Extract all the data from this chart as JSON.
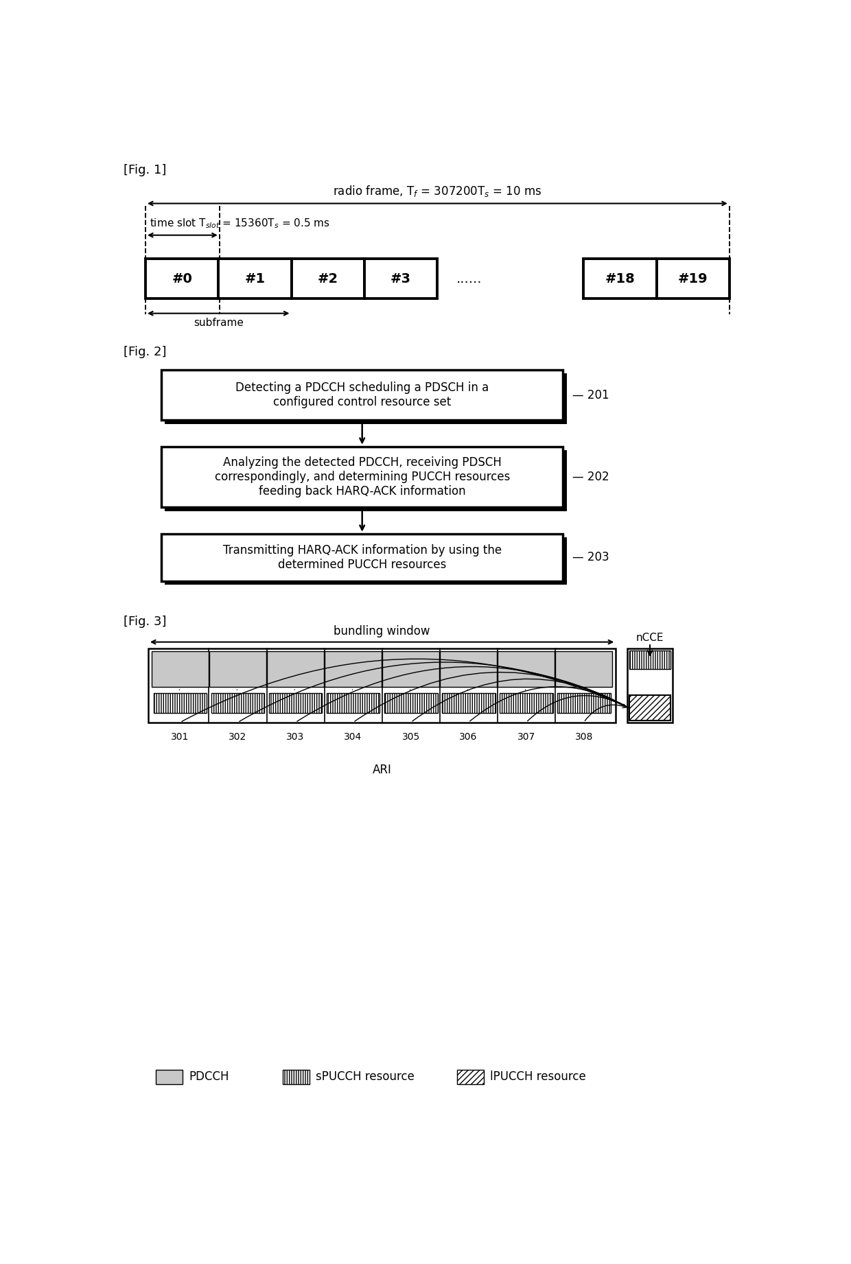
{
  "fig1_label": "[Fig. 1]",
  "fig2_label": "[Fig. 2]",
  "fig3_label": "[Fig. 3]",
  "radio_frame_text": "radio frame, T$_f$ = 307200T$_s$ = 10 ms",
  "timeslot_text": "time slot T$_{slot}$ = 15360T$_s$ = 0.5 ms",
  "subframe_text": "subframe",
  "slot_labels_1": [
    "#0",
    "#1",
    "#2",
    "#3"
  ],
  "slot_labels_2": [
    "#18",
    "#19"
  ],
  "slots_dots": "......",
  "box201_text": "Detecting a PDCCH scheduling a PDSCH in a\nconfigured control resource set",
  "box202_text": "Analyzing the detected PDCCH, receiving PDSCH\ncorrespondingly, and determining PUCCH resources\nfeeding back HARQ-ACK information",
  "box203_text": "Transmitting HARQ-ACK information by using the\ndetermined PUCCH resources",
  "label201": "201",
  "label202": "202",
  "label203": "203",
  "bundling_window_text": "bundling window",
  "ncce_text": "nCCE",
  "ari_text": "ARI",
  "fig3_slots": [
    "301",
    "302",
    "303",
    "304",
    "305",
    "306",
    "307",
    "308"
  ],
  "legend_pdcch": "PDCCH",
  "legend_spucch": "sPUCCH resource",
  "legend_lpucch": "lPUCCH resource",
  "bg_color": "#ffffff"
}
